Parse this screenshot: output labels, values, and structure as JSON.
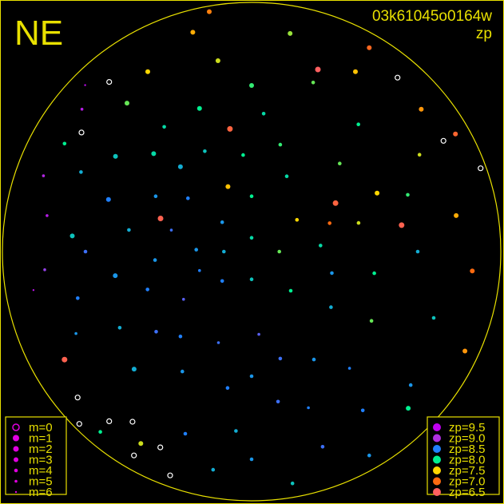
{
  "header": {
    "direction_label": "NE",
    "frame_id": "03k61045o0164w",
    "quantity": "zp"
  },
  "colors": {
    "frame": "#e8e000",
    "unmeasured": "#ffffff",
    "background": "#000000"
  },
  "legend_size": {
    "items": [
      {
        "label": "m=0",
        "m": 0,
        "style": "open-circle"
      },
      {
        "label": "m=1",
        "m": 1
      },
      {
        "label": "m=2",
        "m": 2
      },
      {
        "label": "m=3",
        "m": 3
      },
      {
        "label": "m=4",
        "m": 4
      },
      {
        "label": "m=5",
        "m": 5
      },
      {
        "label": "m=6",
        "m": 6
      }
    ],
    "color": "#e000e0"
  },
  "legend_color": {
    "items": [
      {
        "label": "zp=9.5",
        "zp": 9.5,
        "color": "#c000f0"
      },
      {
        "label": "zp=9.0",
        "zp": 9.0,
        "color": "#b030e0"
      },
      {
        "label": "zp=8.5",
        "zp": 8.5,
        "color": "#2080ff"
      },
      {
        "label": "zp=8.0",
        "zp": 8.0,
        "color": "#00f090"
      },
      {
        "label": "zp=7.5",
        "zp": 7.5,
        "color": "#ffd800"
      },
      {
        "label": "zp=7.0",
        "zp": 7.0,
        "color": "#ff6a10"
      },
      {
        "label": "zp=6.5",
        "zp": 6.5,
        "color": "#ff6060"
      }
    ]
  },
  "chart_data": {
    "type": "scatter",
    "projection": "polar all-sky, north up, east left, zenith at center, horizon at circle",
    "fields": [
      "azimuth_deg",
      "zenith_distance_deg",
      "zp",
      "m"
    ],
    "zd_range": [
      0,
      90
    ],
    "points": [
      [
        60,
        40,
        8.4,
        4
      ],
      [
        70,
        55,
        8.5,
        3
      ],
      [
        80,
        45,
        8.3,
        4
      ],
      [
        90,
        60,
        8.6,
        4
      ],
      [
        100,
        50,
        8.4,
        3
      ],
      [
        110,
        40,
        8.5,
        4
      ],
      [
        120,
        55,
        8.3,
        4
      ],
      [
        75,
        30,
        8.6,
        5
      ],
      [
        95,
        35,
        8.4,
        4
      ],
      [
        85,
        65,
        8.2,
        3
      ],
      [
        105,
        65,
        8.5,
        4
      ],
      [
        115,
        70,
        8.4,
        5
      ],
      [
        130,
        45,
        8.6,
        4
      ],
      [
        65,
        68,
        8.3,
        4
      ],
      [
        55,
        60,
        8.2,
        3
      ],
      [
        50,
        30,
        8.5,
        4
      ],
      [
        45,
        50,
        8.1,
        3
      ],
      [
        125,
        30,
        8.7,
        5
      ],
      [
        140,
        40,
        8.5,
        4
      ],
      [
        150,
        50,
        8.4,
        4
      ],
      [
        160,
        35,
        8.6,
        5
      ],
      [
        135,
        60,
        8.3,
        3
      ],
      [
        95,
        75,
        8.9,
        5
      ],
      [
        80,
        75,
        9.2,
        5
      ],
      [
        100,
        80,
        9.3,
        6
      ],
      [
        70,
        80,
        9.1,
        5
      ],
      [
        60,
        78,
        8.0,
        4
      ],
      [
        88,
        20,
        8.4,
        4
      ],
      [
        110,
        20,
        8.5,
        5
      ],
      [
        40,
        40,
        8.3,
        3
      ],
      [
        35,
        55,
        8.1,
        4
      ],
      [
        170,
        50,
        8.5,
        4
      ],
      [
        180,
        45,
        8.4,
        4
      ],
      [
        190,
        55,
        8.6,
        4
      ],
      [
        200,
        60,
        8.5,
        5
      ],
      [
        210,
        45,
        8.4,
        4
      ],
      [
        175,
        65,
        8.3,
        4
      ],
      [
        185,
        30,
        8.7,
        5
      ],
      [
        195,
        40,
        8.6,
        4
      ],
      [
        220,
        55,
        8.5,
        5
      ],
      [
        0,
        60,
        7.9,
        3
      ],
      [
        10,
        70,
        7.6,
        3
      ],
      [
        20,
        55,
        8.0,
        3
      ],
      [
        30,
        75,
        7.5,
        3
      ],
      [
        350,
        80,
        7.7,
        3
      ],
      [
        340,
        65,
        7.8,
        4
      ],
      [
        330,
        75,
        7.4,
        3
      ],
      [
        320,
        60,
        8.0,
        4
      ],
      [
        15,
        82,
        7.3,
        3
      ],
      [
        355,
        50,
        8.1,
        4
      ],
      [
        25,
        40,
        8.2,
        4
      ],
      [
        5,
        35,
        8.0,
        4
      ],
      [
        345,
        40,
        7.9,
        4
      ],
      [
        40,
        70,
        7.8,
        3
      ],
      [
        50,
        80,
        9.2,
        5
      ],
      [
        45,
        85,
        9.4,
        6
      ],
      [
        310,
        80,
        7.2,
        3
      ],
      [
        300,
        70,
        7.6,
        4
      ],
      [
        290,
        60,
        7.9,
        4
      ],
      [
        315,
        45,
        7.8,
        4
      ],
      [
        335,
        30,
        8.1,
        4
      ],
      [
        0,
        20,
        8.0,
        4
      ],
      [
        20,
        25,
        7.4,
        3
      ],
      [
        330,
        85,
        6.9,
        3
      ],
      [
        10,
        88,
        7.1,
        3
      ],
      [
        270,
        60,
        8.3,
        4
      ],
      [
        260,
        45,
        8.0,
        4
      ],
      [
        280,
        75,
        7.3,
        3
      ],
      [
        250,
        70,
        8.2,
        4
      ],
      [
        240,
        50,
        7.8,
        4
      ],
      [
        230,
        75,
        8.4,
        4
      ],
      [
        265,
        80,
        7.0,
        3
      ],
      [
        285,
        40,
        7.6,
        4
      ],
      [
        275,
        25,
        8.1,
        4
      ],
      [
        255,
        30,
        8.4,
        4
      ],
      [
        245,
        85,
        7.2,
        3
      ],
      [
        225,
        80,
        8.0,
        3
      ],
      [
        215,
        70,
        8.5,
        4
      ],
      [
        235,
        35,
        8.3,
        4
      ],
      [
        295,
        50,
        7.5,
        3
      ],
      [
        300,
        85,
        6.8,
        3
      ],
      [
        290,
        30,
        7.0,
        4
      ],
      [
        305,
        20,
        7.5,
        4
      ],
      [
        0,
        5,
        8.1,
        4
      ],
      [
        90,
        10,
        8.3,
        4
      ],
      [
        180,
        10,
        8.2,
        4
      ],
      [
        270,
        10,
        7.8,
        4
      ],
      [
        45,
        15,
        8.4,
        4
      ],
      [
        225,
        20,
        8.0,
        4
      ],
      [
        135,
        15,
        8.5,
        4
      ],
      [
        160,
        70,
        8.5,
        4
      ],
      [
        170,
        80,
        8.3,
        4
      ],
      [
        180,
        75,
        8.4,
        4
      ],
      [
        190,
        85,
        8.2,
        4
      ],
      [
        200,
        75,
        8.6,
        4
      ],
      [
        150,
        80,
        7.6,
        3
      ],
      [
        140,
        85,
        8.0,
        4
      ],
      [
        210,
        85,
        8.4,
        4
      ],
      [
        70,
        35,
        6.6,
        2
      ],
      [
        10,
        45,
        6.7,
        2
      ],
      [
        340,
        70,
        6.5,
        2
      ],
      [
        280,
        55,
        6.6,
        2
      ],
      [
        120,
        78,
        6.6,
        2
      ],
      [
        300,
        35,
        6.7,
        2
      ],
      [
        140,
        80,
        null,
        2
      ],
      [
        145,
        75,
        null,
        2
      ],
      [
        150,
        85,
        null,
        2
      ],
      [
        135,
        88,
        null,
        2
      ],
      [
        155,
        78,
        null,
        2
      ],
      [
        130,
        82,
        null,
        2
      ],
      [
        160,
        86,
        null,
        2
      ],
      [
        55,
        75,
        null,
        2
      ],
      [
        40,
        80,
        null,
        2
      ],
      [
        300,
        80,
        null,
        2
      ],
      [
        290,
        88,
        null,
        2
      ],
      [
        320,
        82,
        null,
        2
      ]
    ]
  }
}
